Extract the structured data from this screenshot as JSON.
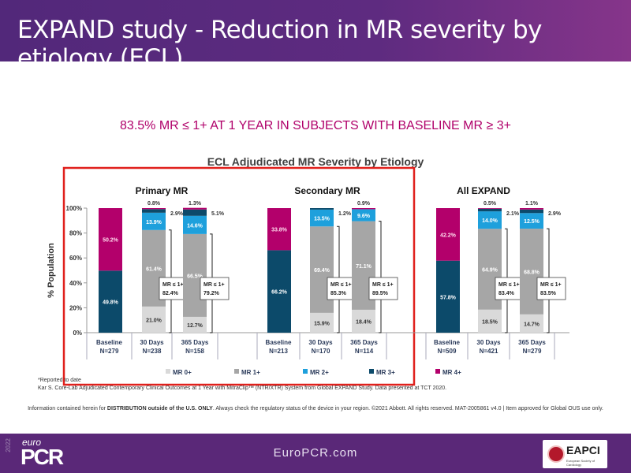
{
  "header": {
    "title": "EXPAND study - Reduction in MR severity by etiology (ECL)"
  },
  "subtitle": "83.5% MR ≤ 1+ AT 1 YEAR IN SUBJECTS WITH BASELINE MR ≥ 3+",
  "chart_data": {
    "type": "bar",
    "stacked": true,
    "title": "ECL Adjudicated MR Severity by Etiology",
    "ylabel": "% Population",
    "ylim": [
      0,
      100
    ],
    "yticks": [
      "0%",
      "20%",
      "40%",
      "60%",
      "80%",
      "100%"
    ],
    "colors": {
      "MR 0+": "#d9d9d9",
      "MR 1+": "#a6a6a6",
      "MR 2+": "#1ea0dc",
      "MR 3+": "#0c4a6a",
      "MR 4+": "#b3006b"
    },
    "legend_placement": "bottom",
    "series_names": [
      "MR 0+",
      "MR 1+",
      "MR 2+",
      "MR 3+",
      "MR 4+"
    ],
    "highlight_box_color": "#e0201c",
    "groups": [
      {
        "name": "Primary MR",
        "bars": [
          {
            "label": "Baseline",
            "n": "N=279",
            "values": [
              0,
              0,
              0,
              49.8,
              50.2
            ]
          },
          {
            "label": "30 Days",
            "n": "N=238",
            "values": [
              21.0,
              61.4,
              13.9,
              2.9,
              0.8
            ],
            "mr_le_1": "82.4%"
          },
          {
            "label": "365 Days",
            "n": "N=158",
            "values": [
              12.7,
              66.5,
              14.6,
              5.1,
              1.3
            ],
            "mr_le_1": "79.2%"
          }
        ]
      },
      {
        "name": "Secondary MR",
        "bars": [
          {
            "label": "Baseline",
            "n": "N=213",
            "values": [
              0,
              0,
              0,
              66.2,
              33.8
            ]
          },
          {
            "label": "30 Days",
            "n": "N=170",
            "values": [
              15.9,
              69.4,
              13.5,
              1.2,
              0
            ],
            "mr_le_1": "85.3%"
          },
          {
            "label": "365 Days",
            "n": "N=114",
            "values": [
              18.4,
              71.1,
              9.6,
              0,
              0.9
            ],
            "mr_le_1": "89.5%"
          }
        ]
      },
      {
        "name": "All EXPAND",
        "bars": [
          {
            "label": "Baseline",
            "n": "N=509",
            "values": [
              0,
              0,
              0,
              57.8,
              42.2
            ]
          },
          {
            "label": "30 Days",
            "n": "N=421",
            "values": [
              18.5,
              64.9,
              14.0,
              2.1,
              0.5
            ],
            "mr_le_1": "83.4%"
          },
          {
            "label": "365 Days",
            "n": "N=279",
            "values": [
              14.7,
              68.8,
              12.5,
              2.9,
              1.1
            ],
            "mr_le_1": "83.5%"
          }
        ]
      }
    ],
    "bracket_label": "MR ≤ 1+"
  },
  "notes": {
    "reported": "*Reported to date",
    "citation": "Kar S. Core-Lab Adjudicated Contemporary Clinical Outcomes at 1 Year with MitraClip™ (NTR/XTR) System from Global EXPAND Study. Data presented at TCT 2020."
  },
  "info": {
    "prefix": "Information contained herein for ",
    "bold": "DISTRIBUTION outside of the U.S. ONLY",
    "suffix": ". Always check the regulatory status of the device in your region.  ©2021 Abbott. All rights reserved. MAT-2005861 v4.0 | Item approved for Global OUS use only."
  },
  "footer": {
    "url": "EuroPCR.com",
    "logo_year": "2022",
    "logo_euro": "euro",
    "logo_pcr": "PCR",
    "eapci": "EAPCI",
    "eapci_sub": "European Society of Cardiology"
  }
}
